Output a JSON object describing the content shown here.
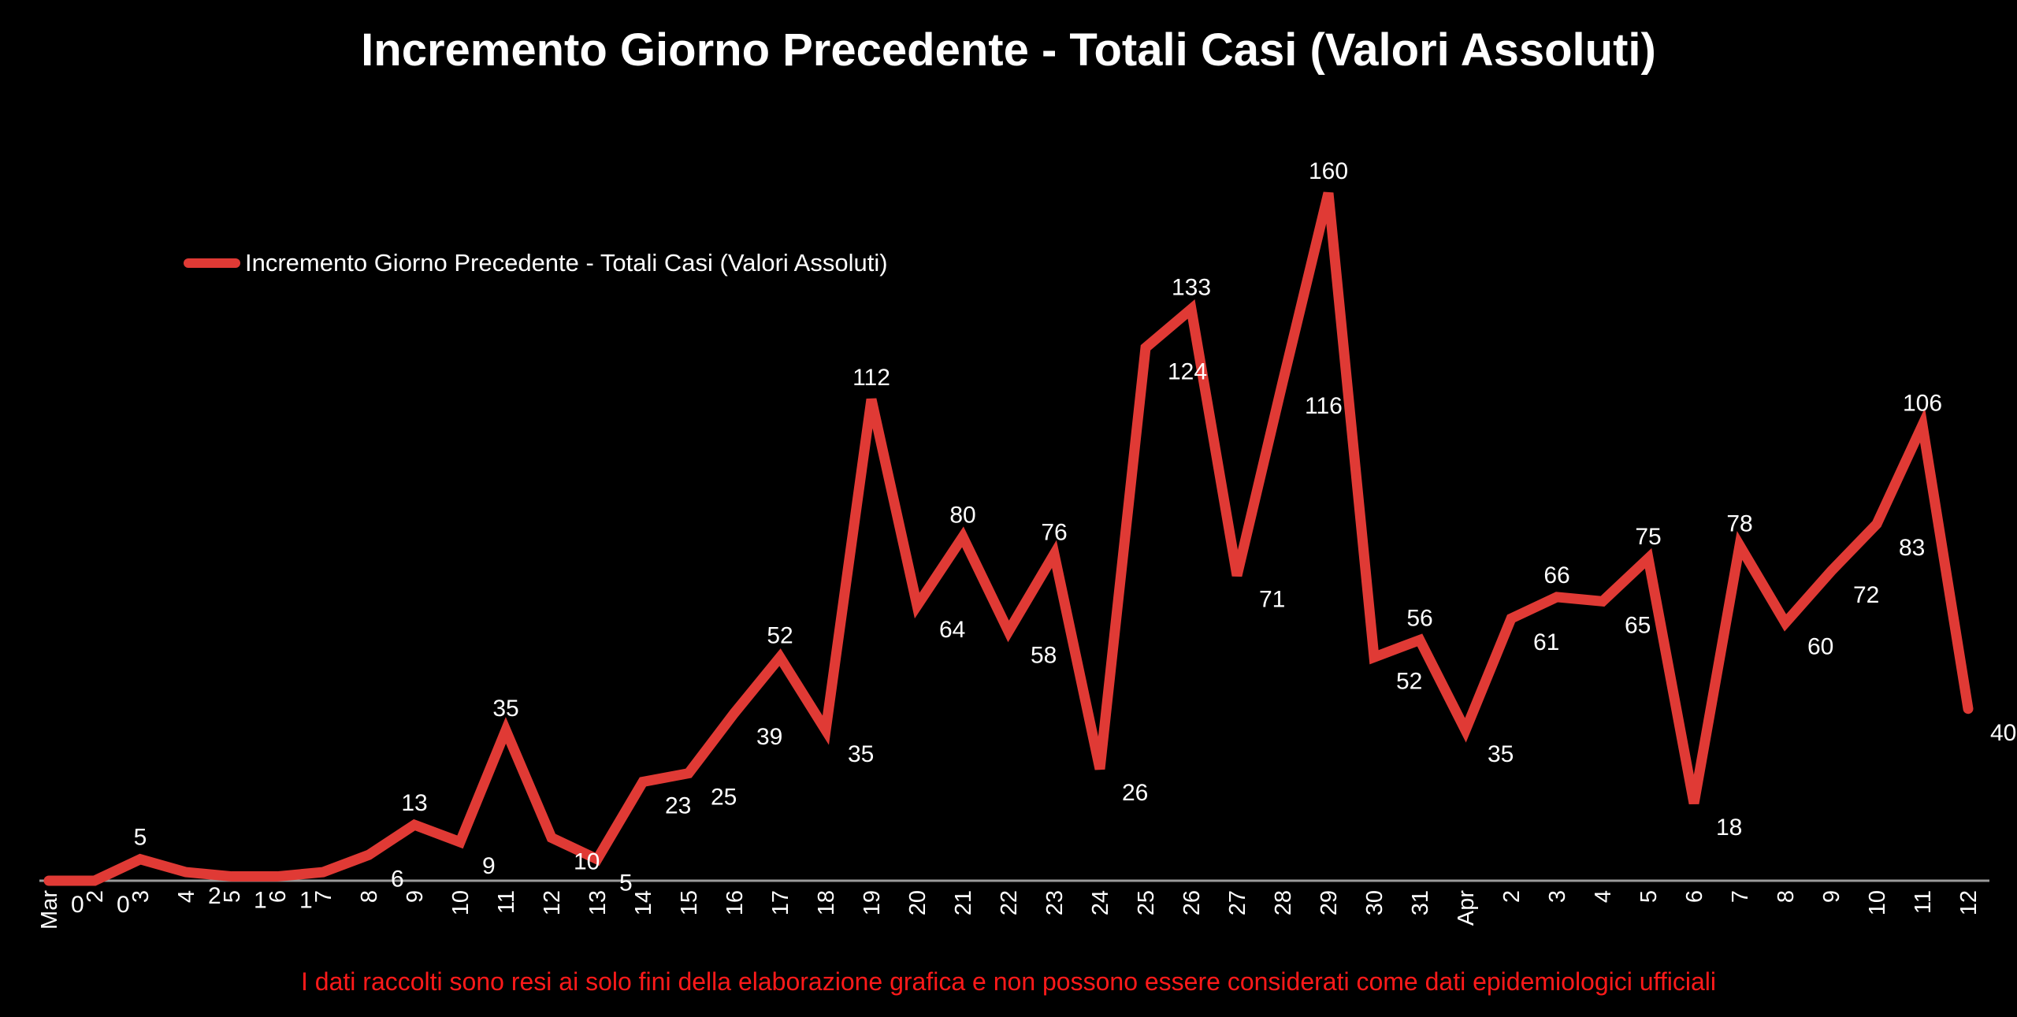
{
  "chart_data": {
    "type": "line",
    "title": "Incremento Giorno Precedente - Totali Casi (Valori Assoluti)",
    "xlabel": "",
    "ylabel": "",
    "legend_position": "top-left",
    "grid": false,
    "ylim": [
      0,
      170
    ],
    "categories": [
      "Mar",
      "2",
      "3",
      "4",
      "5",
      "6",
      "7",
      "8",
      "9",
      "10",
      "11",
      "12",
      "13",
      "14",
      "15",
      "16",
      "17",
      "18",
      "19",
      "20",
      "21",
      "22",
      "23",
      "24",
      "25",
      "26",
      "27",
      "28",
      "29",
      "30",
      "31",
      "Apr",
      "2",
      "3",
      "4",
      "5",
      "6",
      "7",
      "8",
      "9",
      "10",
      "11",
      "12"
    ],
    "series": [
      {
        "name": "Incremento Giorno Precedente - Totali Casi (Valori Assoluti)",
        "color": "#e03a35",
        "values": [
          0,
          0,
          5,
          2,
          1,
          1,
          2,
          6,
          13,
          9,
          35,
          10,
          5,
          23,
          25,
          39,
          52,
          35,
          112,
          64,
          80,
          58,
          76,
          26,
          124,
          133,
          71,
          116,
          160,
          52,
          56,
          35,
          61,
          66,
          65,
          75,
          18,
          78,
          60,
          72,
          83,
          106,
          40
        ],
        "labels": [
          "0",
          "0",
          "5",
          "2",
          "1",
          "1",
          null,
          "6",
          "13",
          "9",
          "35",
          "10",
          "5",
          "23",
          "25",
          "39",
          "52",
          "35",
          "112",
          "64",
          "80",
          "58",
          "76",
          "26",
          "124",
          "133",
          "71",
          "116",
          "160",
          "52",
          "56",
          "35",
          "61",
          "66",
          "65",
          "75",
          "18",
          "78",
          "60",
          "72",
          "83",
          "106",
          "40"
        ]
      }
    ]
  },
  "footnote": "I dati raccolti  sono resi ai solo fini della elaborazione grafica e non possono essere considerati come dati epidemiologici  ufficiali",
  "colors": {
    "background": "#000000",
    "footnote": "#ff1a1a",
    "axis": "#9a9a9a"
  }
}
